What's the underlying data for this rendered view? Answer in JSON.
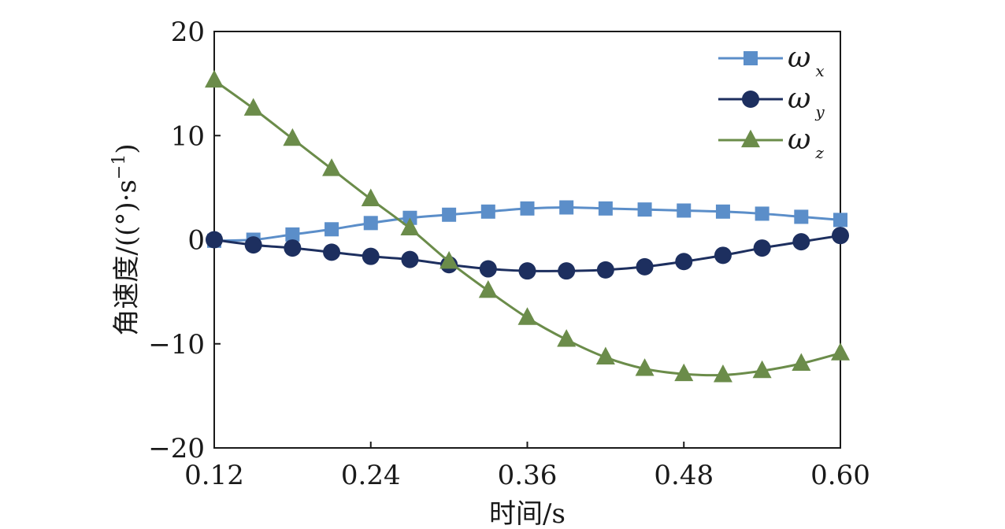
{
  "chart_data": {
    "type": "line",
    "xlabel": "时间/s",
    "ylabel": "角速度/((°)·s",
    "ylabel_sup": "−1",
    "ylabel_close": ")",
    "xlim": [
      0.12,
      0.6
    ],
    "ylim": [
      -20,
      20
    ],
    "xticks": [
      0.12,
      0.24,
      0.36,
      0.48,
      0.6
    ],
    "xtick_labels": [
      "0.12",
      "0.24",
      "0.36",
      "0.48",
      "0.60"
    ],
    "yticks": [
      -20,
      -10,
      0,
      10,
      20
    ],
    "ytick_labels": [
      "−20",
      "−10",
      "0",
      "10",
      "20"
    ],
    "grid": false,
    "legend_position": "top-right",
    "x": [
      0.12,
      0.15,
      0.18,
      0.21,
      0.24,
      0.27,
      0.3,
      0.33,
      0.36,
      0.39,
      0.42,
      0.45,
      0.48,
      0.51,
      0.54,
      0.57,
      0.6
    ],
    "series": [
      {
        "name": "ω",
        "sub": "x",
        "color": "#5b8ec9",
        "marker": "square",
        "values": [
          -0.1,
          0.0,
          0.5,
          1.0,
          1.6,
          2.1,
          2.4,
          2.7,
          3.0,
          3.1,
          3.0,
          2.9,
          2.8,
          2.7,
          2.5,
          2.2,
          1.9
        ]
      },
      {
        "name": "ω",
        "sub": "y",
        "color": "#1d2f5f",
        "marker": "circle",
        "values": [
          0.0,
          -0.5,
          -0.8,
          -1.2,
          -1.6,
          -1.9,
          -2.4,
          -2.8,
          -3.0,
          -3.0,
          -2.9,
          -2.6,
          -2.1,
          -1.5,
          -0.8,
          -0.2,
          0.4
        ]
      },
      {
        "name": "ω",
        "sub": "z",
        "color": "#6b8c4a",
        "marker": "triangle",
        "values": [
          15.3,
          12.6,
          9.7,
          6.8,
          3.9,
          1.1,
          -2.1,
          -4.9,
          -7.5,
          -9.6,
          -11.3,
          -12.4,
          -12.9,
          -13.0,
          -12.6,
          -11.9,
          -10.9
        ]
      }
    ]
  }
}
